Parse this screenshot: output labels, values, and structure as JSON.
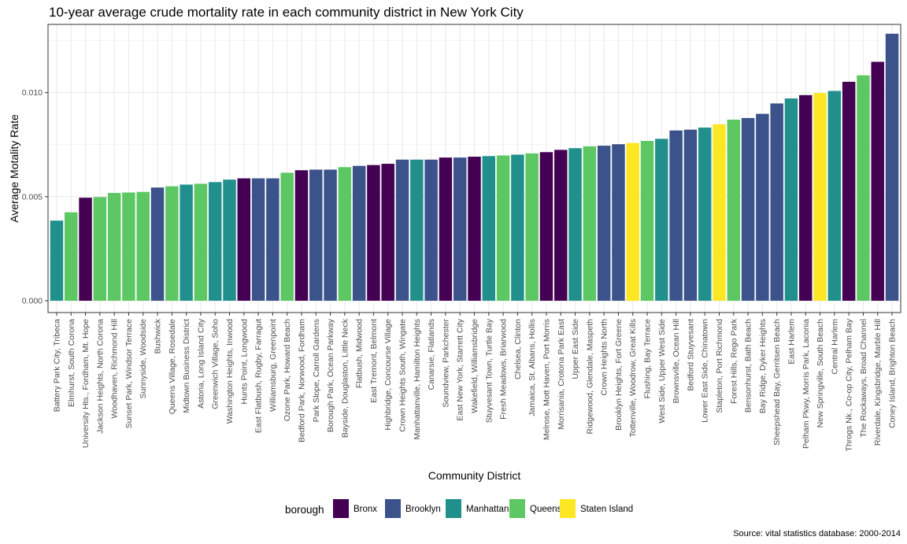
{
  "chart_data": {
    "type": "bar",
    "title": "10-year average crude mortality rate in each community district in New York City",
    "xlabel": "Community District",
    "ylabel": "Average Motality Rate",
    "caption": "Source: vital statistics database: 2000-2014",
    "legend_title": "borough",
    "legend_position": "bottom",
    "grid": true,
    "ylim": [
      0,
      0.0129
    ],
    "yticks": [
      0,
      0.005,
      0.01
    ],
    "ytick_labels": [
      "0.000",
      "0.005",
      "0.010"
    ],
    "boroughs": [
      {
        "name": "Bronx",
        "color": "#440154"
      },
      {
        "name": "Brooklyn",
        "color": "#3b528b"
      },
      {
        "name": "Manhattan",
        "color": "#21908c"
      },
      {
        "name": "Queens",
        "color": "#5dc863"
      },
      {
        "name": "Staten Island",
        "color": "#fde725"
      }
    ],
    "categories": [
      "Battery Park City, Tribeca",
      "Elmhurst, South Corona",
      "University Hts., Fordham, Mt. Hope",
      "Jackson Heights, North Corona",
      "Woodhaven, Richmond Hill",
      "Sunset Park, Windsor Terrace",
      "Sunnyside, Woodside",
      "Bushwick",
      "Queens Village, Rosedale",
      "Midtown Business District",
      "Astoria, Long Island City",
      "Greenwich Village, Soho",
      "Washington Heights, Inwood",
      "Hunts Point, Longwood",
      "East Flatbush, Rugby, Farragut",
      "Williamsburg, Greenpoint",
      "Ozone Park, Howard Beach",
      "Bedford Park, Norwood, Fordham",
      "Park Slope, Carroll Gardens",
      "Borough Park, Ocean Parkway",
      "Bayside, Douglaston, Little Neck",
      "Flatbush, Midwood",
      "East Tremont, Belmont",
      "Highbridge, Concourse Village",
      "Crown Heights South, Wingate",
      "Manhattanville, Hamilton Heights",
      "Canarsie, Flatlands",
      "Soundview, Parkchester",
      "East New York, Starrett City",
      "Wakefield, Williamsbridge",
      "Stuyvesant Town, Turtle Bay",
      "Fresh Meadows, Briarwood",
      "Chelsea, Clinton",
      "Jamaica, St. Albans, Hollis",
      "Melrose, Mott Haven, Port Morris",
      "Morrisania, Crotona Park East",
      "Upper East Side",
      "Ridgewood, Glendale, Maspeth",
      "Crown Heights North",
      "Brooklyn Heights, Fort Greene",
      "Tottenville, Woodrow, Great Kills",
      "Flushing, Bay Terrace",
      "West Side, Upper West Side",
      "Brownsville, Ocean Hill",
      "Bedford Stuyvesant",
      "Lower East Side, Chinatown",
      "Stapleton, Port Richmond",
      "Forest Hills, Rego Park",
      "Bensonhurst, Bath Beach",
      "Bay Ridge, Dyker Heights",
      "Sheepshead Bay, Gerritsen Beach",
      "East Harlem",
      "Pelham Pkwy, Morris Park, Laconia",
      "New Springville, South Beach",
      "Central Harlem",
      "Throgs Nk., Co-op City, Pelham Bay",
      "The Rockaways, Broad Channel",
      "Riverdale, Kingsbridge, Marble Hill",
      "Coney Island, Brighton Beach"
    ],
    "values": [
      0.00385,
      0.00425,
      0.00495,
      0.00498,
      0.00518,
      0.0052,
      0.00523,
      0.00544,
      0.0055,
      0.00558,
      0.00562,
      0.0057,
      0.00582,
      0.00588,
      0.00588,
      0.00588,
      0.00615,
      0.00627,
      0.0063,
      0.0063,
      0.00642,
      0.00648,
      0.00652,
      0.00658,
      0.00678,
      0.00678,
      0.00678,
      0.00688,
      0.00688,
      0.00692,
      0.00695,
      0.00698,
      0.00702,
      0.00708,
      0.00714,
      0.00725,
      0.00733,
      0.00742,
      0.00745,
      0.00752,
      0.00758,
      0.00768,
      0.00778,
      0.00818,
      0.00822,
      0.00832,
      0.00848,
      0.0087,
      0.00878,
      0.00898,
      0.00948,
      0.00972,
      0.00988,
      0.00998,
      0.01008,
      0.01052,
      0.01083,
      0.01148,
      0.01283
    ],
    "boroughs_by_bar": [
      "Manhattan",
      "Queens",
      "Bronx",
      "Queens",
      "Queens",
      "Queens",
      "Queens",
      "Brooklyn",
      "Queens",
      "Manhattan",
      "Queens",
      "Manhattan",
      "Manhattan",
      "Bronx",
      "Brooklyn",
      "Brooklyn",
      "Queens",
      "Bronx",
      "Brooklyn",
      "Brooklyn",
      "Queens",
      "Brooklyn",
      "Bronx",
      "Bronx",
      "Brooklyn",
      "Manhattan",
      "Brooklyn",
      "Bronx",
      "Brooklyn",
      "Bronx",
      "Manhattan",
      "Queens",
      "Manhattan",
      "Queens",
      "Bronx",
      "Bronx",
      "Manhattan",
      "Queens",
      "Brooklyn",
      "Brooklyn",
      "Staten Island",
      "Queens",
      "Manhattan",
      "Brooklyn",
      "Brooklyn",
      "Manhattan",
      "Staten Island",
      "Queens",
      "Brooklyn",
      "Brooklyn",
      "Brooklyn",
      "Manhattan",
      "Bronx",
      "Staten Island",
      "Manhattan",
      "Bronx",
      "Queens",
      "Bronx",
      "Brooklyn"
    ]
  }
}
